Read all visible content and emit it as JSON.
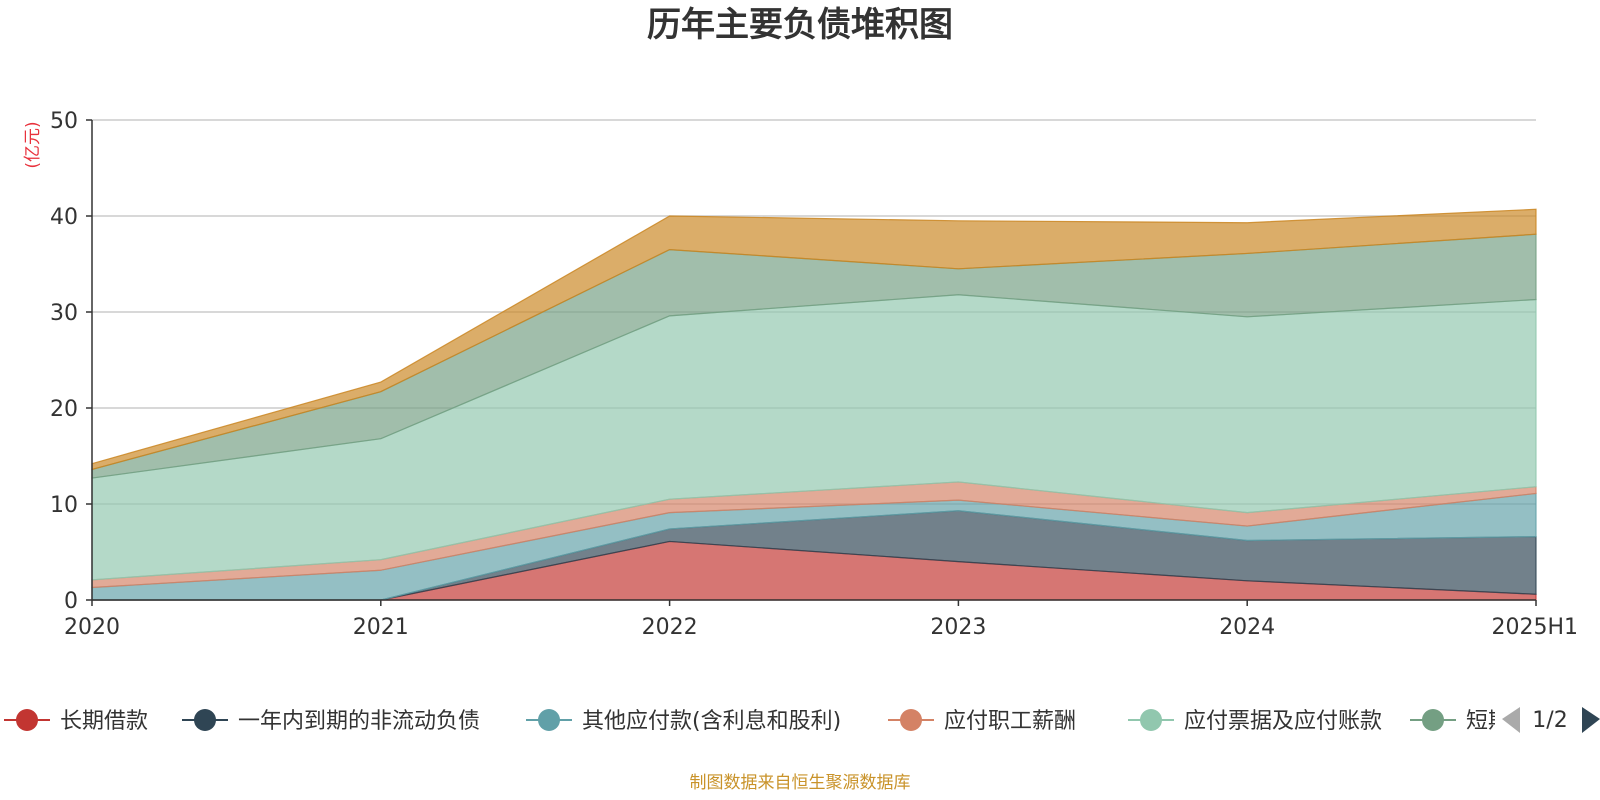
{
  "chart_data": {
    "type": "area",
    "stacked": true,
    "title": "历年主要负债堆积图",
    "ylabel": "(亿元)",
    "xlabel": "",
    "categories": [
      "2020",
      "2021",
      "2022",
      "2023",
      "2024",
      "2025H1"
    ],
    "ylim": [
      0,
      50
    ],
    "yticks": [
      0,
      10,
      20,
      30,
      40,
      50
    ],
    "grid": true,
    "legend_position": "bottom",
    "series": [
      {
        "name": "长期借款",
        "color": "#c23531",
        "values": [
          0,
          0,
          6.1,
          4.0,
          2.0,
          0.6
        ]
      },
      {
        "name": "一年内到期的非流动负债",
        "color": "#2f4554",
        "values": [
          0,
          0,
          1.3,
          5.3,
          4.2,
          6.0
        ]
      },
      {
        "name": "其他应付款(含利息和股利)",
        "color": "#61a0a8",
        "values": [
          1.3,
          3.1,
          1.7,
          1.1,
          1.5,
          4.5
        ]
      },
      {
        "name": "应付职工薪酬",
        "color": "#d48265",
        "values": [
          0.8,
          1.1,
          1.4,
          1.9,
          1.4,
          0.7
        ]
      },
      {
        "name": "应付票据及应付账款",
        "color": "#91c7ae",
        "values": [
          10.6,
          12.6,
          19.1,
          19.5,
          20.4,
          19.5
        ]
      },
      {
        "name": "短期借款",
        "color": "#749f83",
        "values": [
          0.9,
          4.9,
          6.9,
          2.7,
          6.6,
          6.8
        ]
      },
      {
        "name": "",
        "color": "#ca8622",
        "values": [
          0.6,
          1.0,
          3.5,
          5.0,
          3.2,
          2.6
        ]
      }
    ]
  },
  "legend": {
    "visible_items": [
      {
        "label": "长期借款",
        "color": "#c23531"
      },
      {
        "label": "一年内到期的非流动负债",
        "color": "#2f4554"
      },
      {
        "label": "其他应付款(含利息和股利)",
        "color": "#61a0a8"
      },
      {
        "label": "应付职工薪酬",
        "color": "#d48265"
      },
      {
        "label": "应付票据及应付账款",
        "color": "#91c7ae"
      },
      {
        "label": "短期借款",
        "color": "#749f83"
      }
    ],
    "page_indicator": "1/2"
  },
  "source_note": "制图数据来自恒生聚源数据库",
  "colors": {
    "unit_label": "#e8313c",
    "source_note": "#c9932a",
    "axis": "#333333",
    "grid": "#cccccc",
    "pager_inactive": "#aaaaaa",
    "pager_active": "#2f4554"
  }
}
